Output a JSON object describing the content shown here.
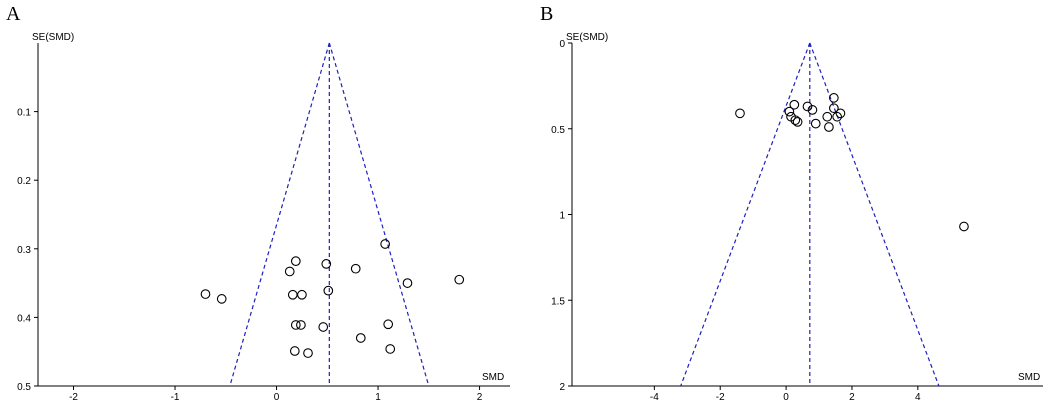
{
  "chart_data": [
    {
      "type": "scatter",
      "panel_label": "A",
      "ylabel": "SE(SMD)",
      "xlabel": "SMD",
      "xlim": [
        -2.35,
        2.3
      ],
      "ylim": [
        0,
        0.5
      ],
      "y_inverted": true,
      "x_ticks": [
        -2,
        -1,
        0,
        1,
        2
      ],
      "y_ticks": [
        0.1,
        0.2,
        0.3,
        0.4,
        0.5
      ],
      "y_tick_labels": [
        "0.1",
        "0.2",
        "0.3",
        "0.4",
        "0.5"
      ],
      "pooled_smd": 0.52,
      "funnel_base": [
        -0.46,
        1.5
      ],
      "points": [
        {
          "x": -0.7,
          "y": 0.366
        },
        {
          "x": -0.54,
          "y": 0.373
        },
        {
          "x": 0.13,
          "y": 0.333
        },
        {
          "x": 0.19,
          "y": 0.318
        },
        {
          "x": 0.16,
          "y": 0.367
        },
        {
          "x": 0.25,
          "y": 0.367
        },
        {
          "x": 0.19,
          "y": 0.411
        },
        {
          "x": 0.24,
          "y": 0.411
        },
        {
          "x": 0.18,
          "y": 0.449
        },
        {
          "x": 0.31,
          "y": 0.452
        },
        {
          "x": 0.49,
          "y": 0.322
        },
        {
          "x": 0.51,
          "y": 0.361
        },
        {
          "x": 0.46,
          "y": 0.414
        },
        {
          "x": 0.78,
          "y": 0.329
        },
        {
          "x": 0.83,
          "y": 0.43
        },
        {
          "x": 1.07,
          "y": 0.293
        },
        {
          "x": 1.29,
          "y": 0.35
        },
        {
          "x": 1.1,
          "y": 0.41
        },
        {
          "x": 1.12,
          "y": 0.446
        },
        {
          "x": 1.8,
          "y": 0.345
        }
      ]
    },
    {
      "type": "scatter",
      "panel_label": "B",
      "ylabel": "SE(SMD)",
      "xlabel": "SMD",
      "xlim": [
        -6.5,
        7.8
      ],
      "ylim": [
        0,
        2
      ],
      "y_inverted": true,
      "x_ticks": [
        -4,
        -2,
        0,
        2,
        4
      ],
      "y_ticks": [
        0,
        0.5,
        1,
        1.5,
        2
      ],
      "y_tick_labels": [
        "0",
        "0.5",
        "1",
        "1.5",
        "2"
      ],
      "pooled_smd": 0.72,
      "funnel_base": [
        -3.2,
        4.64
      ],
      "points": [
        {
          "x": -1.4,
          "y": 0.41
        },
        {
          "x": 0.1,
          "y": 0.4
        },
        {
          "x": 0.15,
          "y": 0.43
        },
        {
          "x": 0.25,
          "y": 0.36
        },
        {
          "x": 0.28,
          "y": 0.45
        },
        {
          "x": 0.35,
          "y": 0.46
        },
        {
          "x": 0.65,
          "y": 0.37
        },
        {
          "x": 0.8,
          "y": 0.39
        },
        {
          "x": 0.9,
          "y": 0.47
        },
        {
          "x": 1.25,
          "y": 0.43
        },
        {
          "x": 1.3,
          "y": 0.49
        },
        {
          "x": 1.45,
          "y": 0.32
        },
        {
          "x": 1.45,
          "y": 0.38
        },
        {
          "x": 1.55,
          "y": 0.43
        },
        {
          "x": 1.65,
          "y": 0.41
        },
        {
          "x": 5.4,
          "y": 1.07
        }
      ]
    }
  ]
}
